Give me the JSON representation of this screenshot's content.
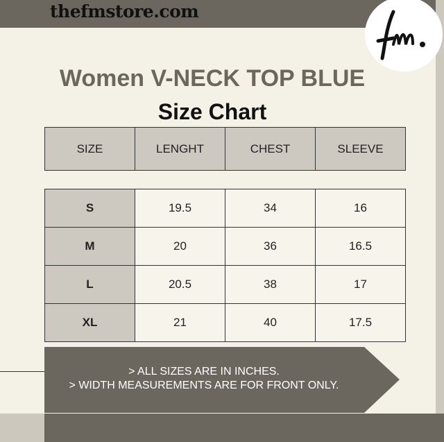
{
  "site": "thefmstore.com",
  "logo_text": "fm.",
  "title": "Women V-NECK TOP BLUE",
  "subtitle": "Size Chart",
  "headers": [
    "SIZE",
    "LENGHT",
    "CHEST",
    "SLEEVE"
  ],
  "rows": [
    [
      "S",
      "19.5",
      "34",
      "16"
    ],
    [
      "M",
      "20",
      "36",
      "16.5"
    ],
    [
      "L",
      "20.5",
      "38",
      "17"
    ],
    [
      "XL",
      "21",
      "40",
      "17.5"
    ]
  ],
  "notes": [
    "> ALL SIZES ARE IN INCHES.",
    "> WIDTH MEASUREMENTS ARE FOR FRONT ONLY."
  ],
  "colors": {
    "dark": "#6b675f",
    "light": "#cdc9c0",
    "background": "#f4f1e7"
  }
}
